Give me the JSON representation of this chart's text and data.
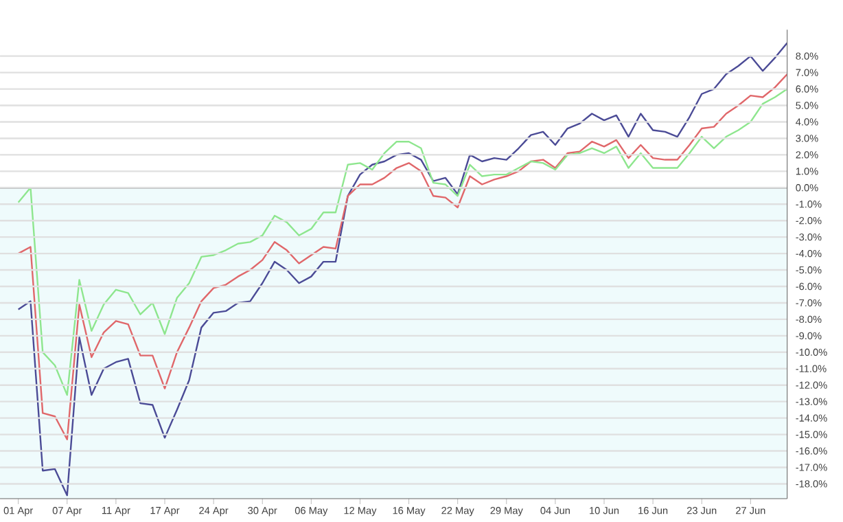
{
  "chart_data": {
    "type": "line",
    "series": [
      {
        "color": "#4b4b96",
        "values": [
          -7.4,
          -6.9,
          -17.2,
          -17.1,
          -18.7,
          -9.1,
          -12.6,
          -11.0,
          -10.6,
          -10.4,
          -13.1,
          -13.2,
          -15.2,
          -13.5,
          -11.7,
          -8.5,
          -7.6,
          -7.5,
          -7.0,
          -6.9,
          -5.8,
          -4.5,
          -5.0,
          -5.8,
          -5.4,
          -4.5,
          -4.5,
          -0.5,
          0.8,
          1.4,
          1.6,
          2.0,
          2.1,
          1.7,
          0.4,
          0.6,
          -0.4,
          2.0,
          1.6,
          1.8,
          1.7,
          2.4,
          3.2,
          3.4,
          2.6,
          3.6,
          3.9,
          4.5,
          4.1,
          4.4,
          3.1,
          4.5,
          3.5,
          3.4,
          3.1,
          4.3,
          5.7,
          6.0,
          6.9,
          7.4,
          8.0,
          7.1,
          7.9,
          8.8
        ]
      },
      {
        "color": "#e0676a",
        "values": [
          -4.0,
          -3.6,
          -13.7,
          -13.9,
          -15.3,
          -7.1,
          -10.3,
          -8.8,
          -8.1,
          -8.3,
          -10.2,
          -10.2,
          -12.2,
          -10.0,
          -8.5,
          -6.9,
          -6.1,
          -5.9,
          -5.4,
          -5.0,
          -4.4,
          -3.3,
          -3.8,
          -4.6,
          -4.1,
          -3.6,
          -3.7,
          -0.5,
          0.2,
          0.2,
          0.6,
          1.2,
          1.5,
          1.0,
          -0.5,
          -0.6,
          -1.2,
          0.7,
          0.2,
          0.5,
          0.7,
          1.0,
          1.6,
          1.7,
          1.2,
          2.1,
          2.2,
          2.8,
          2.5,
          2.9,
          1.8,
          2.6,
          1.8,
          1.7,
          1.7,
          2.6,
          3.6,
          3.7,
          4.5,
          5.0,
          5.6,
          5.5,
          6.1,
          6.9
        ]
      },
      {
        "color": "#8ee68e",
        "values": [
          -0.9,
          0.0,
          -10.0,
          -10.8,
          -12.6,
          -5.6,
          -8.7,
          -7.1,
          -6.2,
          -6.4,
          -7.7,
          -7.0,
          -8.9,
          -6.7,
          -5.8,
          -4.2,
          -4.1,
          -3.8,
          -3.4,
          -3.3,
          -2.9,
          -1.7,
          -2.1,
          -2.9,
          -2.5,
          -1.5,
          -1.5,
          1.4,
          1.5,
          1.1,
          2.1,
          2.8,
          2.8,
          2.4,
          0.3,
          0.2,
          -0.5,
          1.4,
          0.7,
          0.8,
          0.8,
          1.2,
          1.6,
          1.5,
          1.1,
          2.0,
          2.1,
          2.4,
          2.1,
          2.5,
          1.2,
          2.1,
          1.2,
          1.2,
          1.2,
          2.1,
          3.1,
          2.4,
          3.1,
          3.5,
          4.0,
          5.1,
          5.5,
          6.0
        ]
      }
    ],
    "categories": [
      "01 Apr",
      null,
      null,
      null,
      "07 Apr",
      null,
      null,
      null,
      "11 Apr",
      null,
      null,
      null,
      "17 Apr",
      null,
      null,
      null,
      "24 Apr",
      null,
      null,
      null,
      "30 Apr",
      null,
      null,
      null,
      "06 May",
      null,
      null,
      null,
      "12 May",
      null,
      null,
      null,
      "16 May",
      null,
      null,
      null,
      "22 May",
      null,
      null,
      null,
      "29 May",
      null,
      null,
      null,
      "04 Jun",
      null,
      null,
      null,
      "10 Jun",
      null,
      null,
      null,
      "16 Jun",
      null,
      null,
      null,
      "23 Jun",
      null,
      null,
      null,
      "27 Jun",
      null,
      null,
      null
    ],
    "ylim": [
      -18.9,
      9.6
    ],
    "yticks": [
      {
        "value": -18,
        "label": "-18.0%"
      },
      {
        "value": -17,
        "label": "-17.0%"
      },
      {
        "value": -16,
        "label": "-16.0%"
      },
      {
        "value": -15,
        "label": "-15.0%"
      },
      {
        "value": -14,
        "label": "-14.0%"
      },
      {
        "value": -13,
        "label": "-13.0%"
      },
      {
        "value": -12,
        "label": "-12.0%"
      },
      {
        "value": -11,
        "label": "-11.0%"
      },
      {
        "value": -10,
        "label": "-10.0%"
      },
      {
        "value": -9,
        "label": "-9.0%"
      },
      {
        "value": -8,
        "label": "-8.0%"
      },
      {
        "value": -7,
        "label": "-7.0%"
      },
      {
        "value": -6,
        "label": "-6.0%"
      },
      {
        "value": -5,
        "label": "-5.0%"
      },
      {
        "value": -4,
        "label": "-4.0%"
      },
      {
        "value": -3,
        "label": "-3.0%"
      },
      {
        "value": -2,
        "label": "-2.0%"
      },
      {
        "value": -1,
        "label": "-1.0%"
      },
      {
        "value": 0,
        "label": "0.0%"
      },
      {
        "value": 1,
        "label": "1.0%"
      },
      {
        "value": 2,
        "label": "2.0%"
      },
      {
        "value": 3,
        "label": "3.0%"
      },
      {
        "value": 4,
        "label": "4.0%"
      },
      {
        "value": 5,
        "label": "5.0%"
      },
      {
        "value": 6,
        "label": "6.0%"
      },
      {
        "value": 7,
        "label": "7.0%"
      },
      {
        "value": 8,
        "label": "8.0%"
      }
    ],
    "grid": "y",
    "legend": false,
    "marker": "none",
    "line_style": "solid",
    "bands": [
      {
        "axis": "y",
        "from": -18.9,
        "to": 0,
        "color": "#effbfc"
      }
    ],
    "ref_lines": [
      {
        "axis": "y",
        "value": 0,
        "color": "#555555"
      }
    ]
  }
}
